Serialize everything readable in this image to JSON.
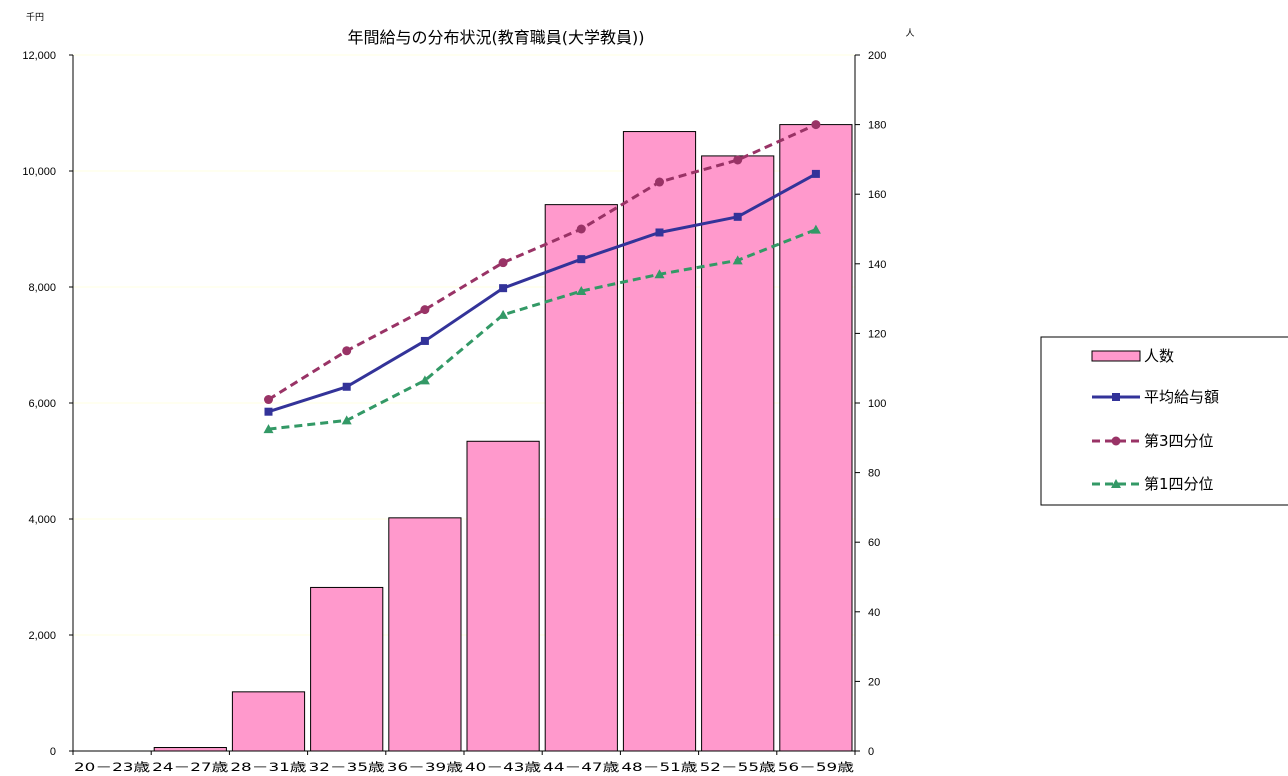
{
  "chart_data": {
    "type": "bar",
    "title": "年間給与の分布状況(教育職員(大学教員))",
    "y_left_unit": "千円",
    "y_right_unit": "人",
    "categories": [
      "20－23歳",
      "24－27歳",
      "28－31歳",
      "32－35歳",
      "36－39歳",
      "40－43歳",
      "44－47歳",
      "48－51歳",
      "52－55歳",
      "56－59歳"
    ],
    "y_left_ticks": [
      "0",
      "2,000",
      "4,000",
      "6,000",
      "8,000",
      "10,000",
      "12,000"
    ],
    "y_right_ticks": [
      "0",
      "20",
      "40",
      "60",
      "80",
      "100",
      "120",
      "140",
      "160",
      "180",
      "200"
    ],
    "ylim_left": [
      0,
      12000
    ],
    "ylim_right": [
      0,
      200
    ],
    "grid": true,
    "legend_position": "right",
    "series": [
      {
        "name": "人数",
        "type": "bar",
        "axis": "right",
        "color": "#ff99cc",
        "values": [
          0,
          1,
          17,
          47,
          67,
          89,
          157,
          178,
          171,
          180
        ]
      },
      {
        "name": "平均給与額",
        "type": "line",
        "axis": "left",
        "color": "#333399",
        "marker": "square",
        "dash": "solid",
        "values": [
          null,
          null,
          5850,
          6280,
          7070,
          7980,
          8480,
          8940,
          9210,
          9950
        ]
      },
      {
        "name": "第3四分位",
        "type": "line",
        "axis": "left",
        "color": "#993366",
        "marker": "circle",
        "dash": "dashed",
        "values": [
          null,
          null,
          6060,
          6900,
          7610,
          8420,
          9000,
          9810,
          10190,
          10800
        ]
      },
      {
        "name": "第1四分位",
        "type": "line",
        "axis": "left",
        "color": "#339966",
        "marker": "triangle",
        "dash": "dashed",
        "values": [
          null,
          null,
          5550,
          5700,
          6390,
          7520,
          7930,
          8220,
          8460,
          8990
        ]
      }
    ]
  }
}
